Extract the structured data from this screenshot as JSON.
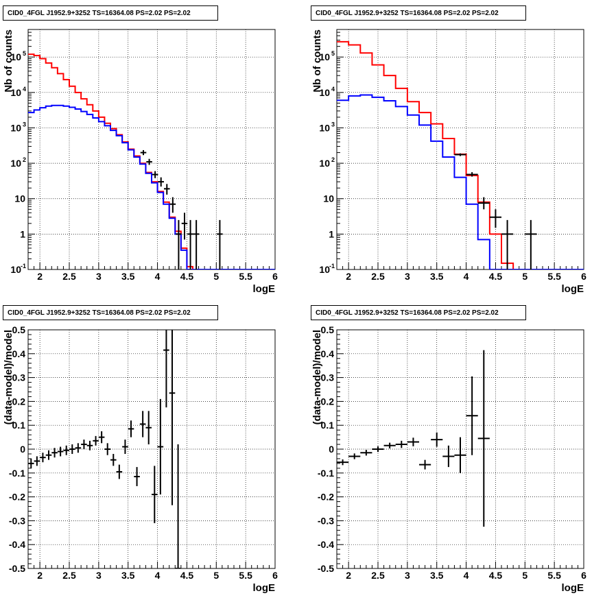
{
  "chart_data": [
    {
      "type": "line",
      "title": "CID0_4FGL J1952.9+3252 TS=16364.08 PS=2.02 PS=2.02",
      "xlabel": "logE",
      "ylabel": "Nb of counts",
      "yscale": "log",
      "xlim": [
        1.8,
        6.0
      ],
      "ylim": [
        0.1,
        600000
      ],
      "xticks": [
        "2",
        "2.5",
        "3",
        "3.5",
        "4",
        "4.5",
        "5",
        "5.5",
        "6"
      ],
      "yticks": [
        "10^-1",
        "1",
        "10",
        "10^2",
        "10^3",
        "10^4",
        "10^5"
      ],
      "grid": true,
      "bin_edges": [
        1.8,
        1.9,
        2.0,
        2.1,
        2.2,
        2.3,
        2.4,
        2.5,
        2.6,
        2.7,
        2.8,
        2.9,
        3.0,
        3.1,
        3.2,
        3.3,
        3.4,
        3.5,
        3.6,
        3.7,
        3.8,
        3.9,
        4.0,
        4.1,
        4.2,
        4.3,
        4.4,
        4.5,
        4.6,
        4.7,
        4.8,
        4.9,
        5.0,
        5.1,
        5.2,
        5.3,
        5.4,
        5.5,
        5.6,
        5.7,
        5.8,
        5.9,
        6.0
      ],
      "series": [
        {
          "color": "#ff0000",
          "values": [
            120000,
            110000,
            90000,
            68000,
            50000,
            34000,
            23000,
            15000,
            10000,
            6600,
            4500,
            3000,
            2000,
            1350,
            950,
            640,
            400,
            250,
            160,
            100,
            55,
            30,
            16,
            8,
            3,
            1.2,
            0.4,
            0.12,
            0.1,
            0.1,
            0.1,
            0.1,
            0.1,
            0.1,
            0.1,
            0.1,
            0.1,
            0.1,
            0.1,
            0.1,
            0.1,
            0.1
          ]
        },
        {
          "color": "#0000ff",
          "values": [
            2700,
            3200,
            3700,
            4100,
            4300,
            4300,
            4100,
            3800,
            3400,
            2900,
            2400,
            1900,
            1500,
            1150,
            850,
            600,
            380,
            240,
            150,
            95,
            52,
            28,
            15,
            7,
            2.8,
            1.0,
            0.35,
            0.1,
            0.1,
            0.1,
            0.1,
            0.1,
            0.1,
            0.1,
            0.1,
            0.1,
            0.1,
            0.1,
            0.1,
            0.1,
            0.1,
            0.1
          ]
        }
      ],
      "points": [
        {
          "x": 3.76,
          "y": 200,
          "xerr": 0.05,
          "ylo": 170,
          "yhi": 235
        },
        {
          "x": 3.86,
          "y": 110,
          "xerr": 0.05,
          "ylo": 90,
          "yhi": 133
        },
        {
          "x": 3.96,
          "y": 48,
          "xerr": 0.05,
          "ylo": 38,
          "yhi": 60
        },
        {
          "x": 4.06,
          "y": 30,
          "xerr": 0.05,
          "ylo": 22,
          "yhi": 40
        },
        {
          "x": 4.16,
          "y": 19,
          "xerr": 0.05,
          "ylo": 13,
          "yhi": 26
        },
        {
          "x": 4.26,
          "y": 7,
          "xerr": 0.05,
          "ylo": 4,
          "yhi": 11
        },
        {
          "x": 4.36,
          "y": 1,
          "xerr": 0.05,
          "ylo": 0.1,
          "yhi": 2.5
        },
        {
          "x": 4.46,
          "y": 2,
          "xerr": 0.05,
          "ylo": 0.7,
          "yhi": 4
        },
        {
          "x": 4.56,
          "y": 1,
          "xerr": 0.05,
          "ylo": 0.1,
          "yhi": 2.5
        },
        {
          "x": 4.66,
          "y": 1,
          "xerr": 0.05,
          "ylo": 0.1,
          "yhi": 2.5
        },
        {
          "x": 5.06,
          "y": 1,
          "xerr": 0.05,
          "ylo": 0.1,
          "yhi": 2.5
        }
      ]
    },
    {
      "type": "line",
      "title": "CID0_4FGL J1952.9+3252 TS=16364.08 PS=2.02 PS=2.02",
      "xlabel": "logE",
      "ylabel": "Nb of counts",
      "yscale": "log",
      "xlim": [
        1.8,
        6.0
      ],
      "ylim": [
        0.1,
        600000
      ],
      "xticks": [
        "2",
        "2.5",
        "3",
        "3.5",
        "4",
        "4.5",
        "5",
        "5.5",
        "6"
      ],
      "yticks": [
        "10^-1",
        "1",
        "10",
        "10^2",
        "10^3",
        "10^4",
        "10^5"
      ],
      "grid": true,
      "bin_edges": [
        1.8,
        2.0,
        2.2,
        2.4,
        2.6,
        2.8,
        3.0,
        3.2,
        3.4,
        3.6,
        3.8,
        4.0,
        4.2,
        4.4,
        4.6,
        4.8,
        5.0,
        5.2,
        5.4,
        5.6,
        5.8,
        6.0
      ],
      "series": [
        {
          "color": "#ff0000",
          "values": [
            270000,
            220000,
            130000,
            60000,
            30000,
            13000,
            5500,
            2700,
            1300,
            500,
            180,
            45,
            8,
            1.0,
            0.15,
            0.1,
            0.1,
            0.1,
            0.1,
            0.1,
            0.1
          ]
        },
        {
          "color": "#0000ff",
          "values": [
            6000,
            8000,
            8500,
            7300,
            5800,
            4000,
            2300,
            1200,
            420,
            150,
            40,
            7,
            0.7,
            0.1,
            0.1,
            0.1,
            0.1,
            0.1,
            0.1,
            0.1,
            0.1
          ]
        }
      ],
      "points": [
        {
          "x": 3.9,
          "y": 175,
          "xerr": 0.1,
          "ylo": 160,
          "yhi": 190
        },
        {
          "x": 4.1,
          "y": 48,
          "xerr": 0.1,
          "ylo": 42,
          "yhi": 56
        },
        {
          "x": 4.3,
          "y": 7.5,
          "xerr": 0.1,
          "ylo": 5,
          "yhi": 11
        },
        {
          "x": 4.5,
          "y": 3,
          "xerr": 0.1,
          "ylo": 1.5,
          "yhi": 5
        },
        {
          "x": 4.7,
          "y": 1,
          "xerr": 0.1,
          "ylo": 0.1,
          "yhi": 2.5
        },
        {
          "x": 5.1,
          "y": 1,
          "xerr": 0.1,
          "ylo": 0.1,
          "yhi": 2.5
        }
      ]
    },
    {
      "type": "scatter",
      "title": "CID0_4FGL J1952.9+3252 TS=16364.08 PS=2.02 PS=2.02",
      "xlabel": "logE",
      "ylabel": "(data-model)/model",
      "xlim": [
        1.8,
        6.0
      ],
      "ylim": [
        -0.5,
        0.5
      ],
      "xticks": [
        "2",
        "2.5",
        "3",
        "3.5",
        "4",
        "4.5",
        "5",
        "5.5",
        "6"
      ],
      "yticks": [
        "-0.5",
        "-0.4",
        "-0.3",
        "-0.2",
        "-0.1",
        "0",
        "0.1",
        "0.2",
        "0.3",
        "0.4",
        "0.5"
      ],
      "grid": true,
      "points": [
        {
          "x": 1.85,
          "y": -0.06,
          "xerr": 0.05,
          "yerr": 0.02
        },
        {
          "x": 1.95,
          "y": -0.05,
          "xerr": 0.05,
          "yerr": 0.02
        },
        {
          "x": 2.05,
          "y": -0.035,
          "xerr": 0.05,
          "yerr": 0.02
        },
        {
          "x": 2.15,
          "y": -0.025,
          "xerr": 0.05,
          "yerr": 0.02
        },
        {
          "x": 2.25,
          "y": -0.015,
          "xerr": 0.05,
          "yerr": 0.02
        },
        {
          "x": 2.35,
          "y": -0.01,
          "xerr": 0.05,
          "yerr": 0.02
        },
        {
          "x": 2.45,
          "y": -0.005,
          "xerr": 0.05,
          "yerr": 0.02
        },
        {
          "x": 2.55,
          "y": 0.0,
          "xerr": 0.05,
          "yerr": 0.02
        },
        {
          "x": 2.65,
          "y": 0.005,
          "xerr": 0.05,
          "yerr": 0.02
        },
        {
          "x": 2.75,
          "y": 0.02,
          "xerr": 0.05,
          "yerr": 0.02
        },
        {
          "x": 2.85,
          "y": 0.015,
          "xerr": 0.05,
          "yerr": 0.02
        },
        {
          "x": 2.95,
          "y": 0.035,
          "xerr": 0.05,
          "yerr": 0.02
        },
        {
          "x": 3.05,
          "y": 0.05,
          "xerr": 0.05,
          "yerr": 0.025
        },
        {
          "x": 3.15,
          "y": 0.0,
          "xerr": 0.05,
          "yerr": 0.025
        },
        {
          "x": 3.25,
          "y": -0.045,
          "xerr": 0.05,
          "yerr": 0.025
        },
        {
          "x": 3.35,
          "y": -0.095,
          "xerr": 0.05,
          "yerr": 0.03
        },
        {
          "x": 3.45,
          "y": 0.01,
          "xerr": 0.05,
          "yerr": 0.03
        },
        {
          "x": 3.55,
          "y": 0.085,
          "xerr": 0.05,
          "yerr": 0.035
        },
        {
          "x": 3.65,
          "y": -0.115,
          "xerr": 0.05,
          "yerr": 0.04
        },
        {
          "x": 3.75,
          "y": 0.105,
          "xerr": 0.05,
          "yerr": 0.055
        },
        {
          "x": 3.85,
          "y": 0.09,
          "xerr": 0.05,
          "yerr": 0.07
        },
        {
          "x": 3.95,
          "y": -0.19,
          "xerr": 0.05,
          "yerr": 0.12
        },
        {
          "x": 4.05,
          "y": 0.01,
          "xerr": 0.05,
          "yerr": 0.2
        },
        {
          "x": 4.15,
          "y": 0.415,
          "xerr": 0.05,
          "yerr": 0.24
        },
        {
          "x": 4.25,
          "y": 0.235,
          "xerr": 0.05,
          "yerr": 0.47
        },
        {
          "x": 4.35,
          "y": -0.5,
          "xerr": 0.05,
          "yerr": 0.52
        }
      ]
    },
    {
      "type": "scatter",
      "title": "CID0_4FGL J1952.9+3252 TS=16364.08 PS=2.02 PS=2.02",
      "xlabel": "logE",
      "ylabel": "(data-model)/model",
      "xlim": [
        1.8,
        6.0
      ],
      "ylim": [
        -0.5,
        0.5
      ],
      "xticks": [
        "2",
        "2.5",
        "3",
        "3.5",
        "4",
        "4.5",
        "5",
        "5.5",
        "6"
      ],
      "yticks": [
        "-0.5",
        "-0.4",
        "-0.3",
        "-0.2",
        "-0.1",
        "0",
        "0.1",
        "0.2",
        "0.3",
        "0.4",
        "0.5"
      ],
      "grid": true,
      "points": [
        {
          "x": 1.9,
          "y": -0.055,
          "xerr": 0.1,
          "yerr": 0.012
        },
        {
          "x": 2.1,
          "y": -0.03,
          "xerr": 0.1,
          "yerr": 0.012
        },
        {
          "x": 2.3,
          "y": -0.015,
          "xerr": 0.1,
          "yerr": 0.012
        },
        {
          "x": 2.5,
          "y": 0.0,
          "xerr": 0.1,
          "yerr": 0.012
        },
        {
          "x": 2.7,
          "y": 0.015,
          "xerr": 0.1,
          "yerr": 0.012
        },
        {
          "x": 2.9,
          "y": 0.02,
          "xerr": 0.1,
          "yerr": 0.015
        },
        {
          "x": 3.1,
          "y": 0.03,
          "xerr": 0.1,
          "yerr": 0.018
        },
        {
          "x": 3.3,
          "y": -0.065,
          "xerr": 0.1,
          "yerr": 0.02
        },
        {
          "x": 3.5,
          "y": 0.04,
          "xerr": 0.1,
          "yerr": 0.03
        },
        {
          "x": 3.7,
          "y": -0.03,
          "xerr": 0.1,
          "yerr": 0.045
        },
        {
          "x": 3.9,
          "y": -0.025,
          "xerr": 0.1,
          "yerr": 0.075
        },
        {
          "x": 4.1,
          "y": 0.14,
          "xerr": 0.1,
          "yerr": 0.165
        },
        {
          "x": 4.3,
          "y": 0.045,
          "xerr": 0.1,
          "yerr": 0.37
        }
      ]
    }
  ]
}
